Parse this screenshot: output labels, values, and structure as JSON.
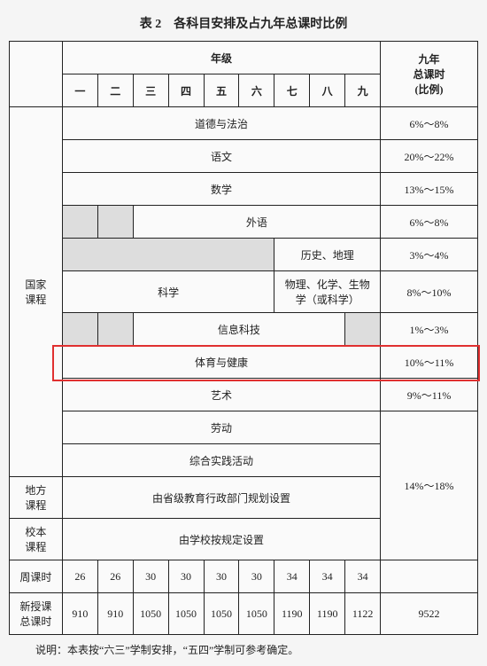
{
  "title": "表 2　各科目安排及占九年总课时比例",
  "header": {
    "grade_group": "年级",
    "grades": [
      "一",
      "二",
      "三",
      "四",
      "五",
      "六",
      "七",
      "八",
      "九"
    ],
    "ratio": "九年\n总课时\n(比例)"
  },
  "row_labels": {
    "national": "国家\n课程",
    "local": "地方\n课程",
    "school": "校本\n课程",
    "weekly": "周课时",
    "total_new": "新授课\n总课时"
  },
  "subjects": {
    "morals": {
      "label": "道德与法治",
      "ratio": "6%～8%"
    },
    "chinese": {
      "label": "语文",
      "ratio": "20%～22%"
    },
    "math": {
      "label": "数学",
      "ratio": "13%～15%"
    },
    "foreign": {
      "label": "外语",
      "ratio": "6%～8%"
    },
    "history": {
      "label": "历史、地理",
      "ratio": "3%～4%"
    },
    "science": {
      "label": "科学",
      "label2": "物理、化学、生物\n学（或科学）",
      "ratio": "8%～10%"
    },
    "it": {
      "label": "信息科技",
      "ratio": "1%～3%"
    },
    "pe": {
      "label": "体育与健康",
      "ratio": "10%～11%"
    },
    "art": {
      "label": "艺术",
      "ratio": "9%～11%"
    },
    "labor": {
      "label": "劳动"
    },
    "practice": {
      "label": "综合实践活动"
    },
    "local_desc": "由省级教育行政部门规划设置",
    "school_desc": "由学校按规定设置",
    "local_ratio": "14%～18%"
  },
  "weekly": [
    "26",
    "26",
    "30",
    "30",
    "30",
    "30",
    "34",
    "34",
    "34"
  ],
  "weekly_ratio": "",
  "total": [
    "910",
    "910",
    "1050",
    "1050",
    "1050",
    "1050",
    "1190",
    "1190",
    "1122"
  ],
  "total_sum": "9522",
  "footnote": "说明：本表按“六三”学制安排，“五四”学制可参考确定。",
  "highlight": {
    "color": "#e03030",
    "row_index": 8
  }
}
